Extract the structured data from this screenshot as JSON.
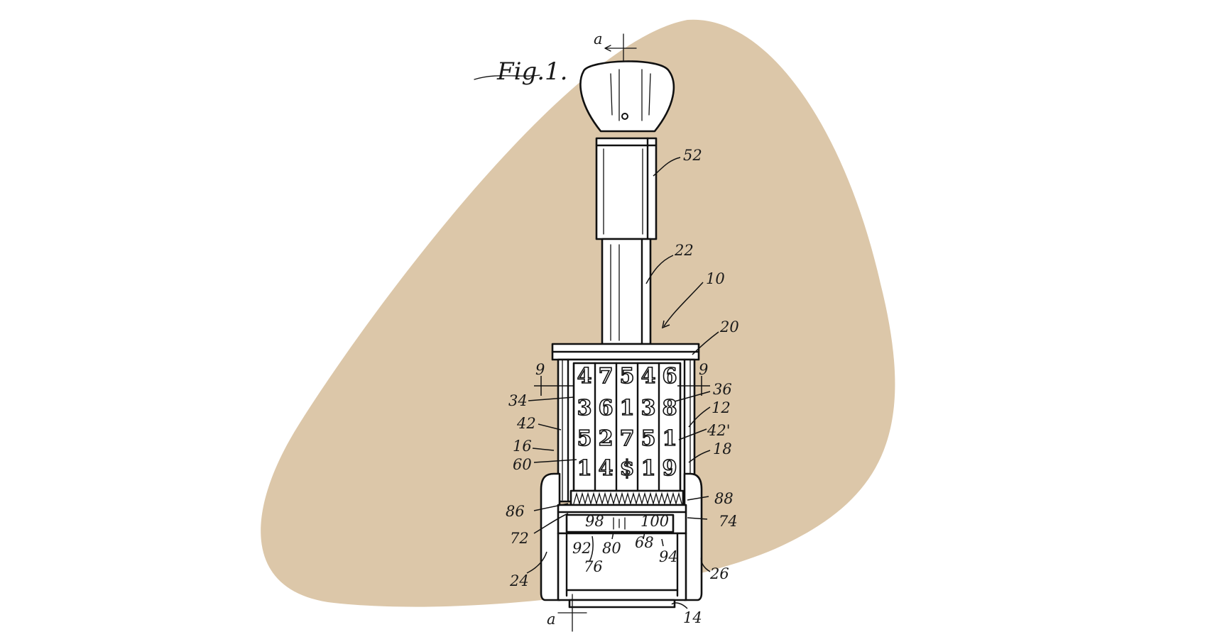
{
  "colors": {
    "background": "#ffffff",
    "blob": "#dcc7a9",
    "ink": "#111111"
  },
  "figure": {
    "label": "Fig.1.",
    "section_marker_top": "a",
    "section_marker_bottom": "a"
  },
  "callouts": {
    "c52": "52",
    "c22": "22",
    "c10": "10",
    "c20": "20",
    "c9_left": "9",
    "c9_right": "9",
    "c34": "34",
    "c36": "36",
    "c12": "12",
    "c42": "42",
    "c42p": "42'",
    "c16": "16",
    "c18": "18",
    "c60": "60",
    "c86": "86",
    "c88": "88",
    "c98": "98",
    "c100": "100",
    "c72": "72",
    "c74": "74",
    "c92": "92",
    "c80": "80",
    "c68": "68",
    "c94": "94",
    "c76": "76",
    "c24": "24",
    "c26": "26",
    "c14": "14"
  },
  "wheels": {
    "row1": [
      "4",
      "7",
      "5",
      "4",
      "6"
    ],
    "row2": [
      "3",
      "6",
      "1",
      "3",
      "8"
    ],
    "row3": [
      "5",
      "2",
      "7",
      "5",
      "1"
    ],
    "row4": [
      "1",
      "4",
      "$",
      "1",
      "9"
    ]
  }
}
